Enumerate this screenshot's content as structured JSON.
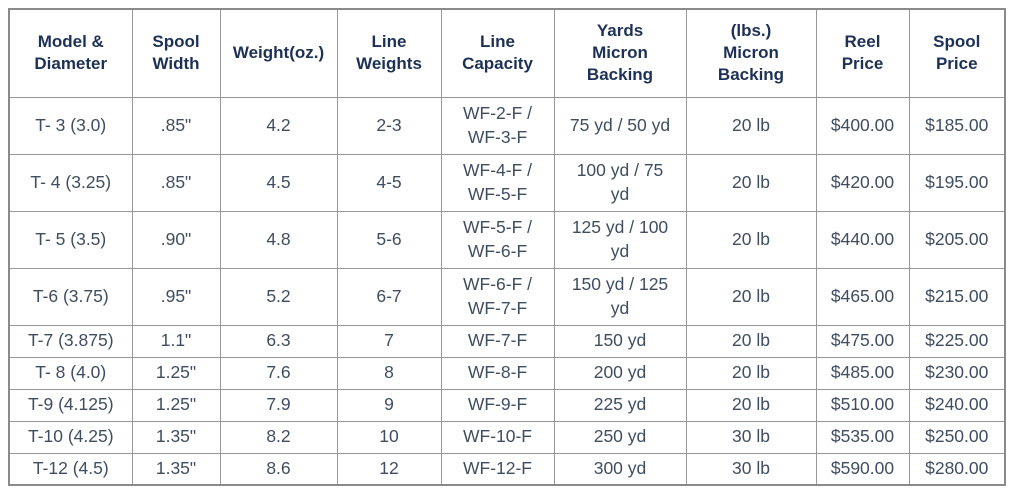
{
  "colors": {
    "header_text": "#1d3156",
    "body_text": "#3f4d61",
    "border": "#979797",
    "outer_border": "#8a8a8a",
    "background": "#ffffff"
  },
  "table": {
    "columns": [
      "Model &\nDiameter",
      "Spool\nWidth",
      "Weight(oz.)",
      "Line\nWeights",
      "Line\nCapacity",
      "Yards\nMicron\nBacking",
      "(lbs.)\nMicron\nBacking",
      "Reel\nPrice",
      "Spool\nPrice"
    ],
    "rows": [
      [
        "T- 3 (3.0)",
        ".85\"",
        "4.2",
        "2-3",
        "WF-2-F /\nWF-3-F",
        "75 yd / 50 yd",
        "20 lb",
        "$400.00",
        "$185.00"
      ],
      [
        "T- 4 (3.25)",
        ".85\"",
        "4.5",
        "4-5",
        "WF-4-F /\nWF-5-F",
        "100 yd / 75\nyd",
        "20 lb",
        "$420.00",
        "$195.00"
      ],
      [
        "T- 5 (3.5)",
        ".90\"",
        "4.8",
        "5-6",
        "WF-5-F /\nWF-6-F",
        "125 yd / 100\nyd",
        "20 lb",
        "$440.00",
        "$205.00"
      ],
      [
        "T-6 (3.75)",
        ".95\"",
        "5.2",
        "6-7",
        "WF-6-F /\nWF-7-F",
        "150 yd / 125\nyd",
        "20 lb",
        "$465.00",
        "$215.00"
      ],
      [
        "T-7 (3.875)",
        "1.1\"",
        "6.3",
        "7",
        "WF-7-F",
        "150 yd",
        "20 lb",
        "$475.00",
        "$225.00"
      ],
      [
        "T- 8 (4.0)",
        "1.25\"",
        "7.6",
        "8",
        "WF-8-F",
        "200 yd",
        "20 lb",
        "$485.00",
        "$230.00"
      ],
      [
        "T-9 (4.125)",
        "1.25\"",
        "7.9",
        "9",
        "WF-9-F",
        "225 yd",
        "20 lb",
        "$510.00",
        "$240.00"
      ],
      [
        "T-10 (4.25)",
        "1.35\"",
        "8.2",
        "10",
        "WF-10-F",
        "250 yd",
        "30 lb",
        "$535.00",
        "$250.00"
      ],
      [
        "T-12 (4.5)",
        "1.35\"",
        "8.6",
        "12",
        "WF-12-F",
        "300 yd",
        "30 lb",
        "$590.00",
        "$280.00"
      ]
    ]
  }
}
